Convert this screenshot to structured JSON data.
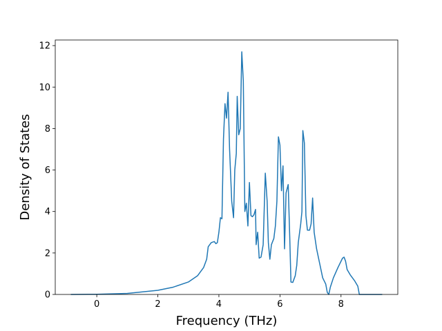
{
  "chart_data": {
    "type": "line",
    "xlabel": "Frequency (THz)",
    "ylabel": "Density of States",
    "color": "#1f77b4",
    "x": [
      -0.85,
      0,
      1,
      2,
      2.5,
      3,
      3.3,
      3.5,
      3.6,
      3.65,
      3.75,
      3.85,
      3.9,
      3.95,
      4.0,
      4.05,
      4.1,
      4.15,
      4.2,
      4.25,
      4.3,
      4.35,
      4.42,
      4.48,
      4.52,
      4.57,
      4.6,
      4.65,
      4.7,
      4.75,
      4.8,
      4.85,
      4.9,
      4.95,
      5.0,
      5.05,
      5.1,
      5.15,
      5.2,
      5.22,
      5.27,
      5.32,
      5.38,
      5.45,
      5.52,
      5.58,
      5.62,
      5.67,
      5.72,
      5.8,
      5.85,
      5.9,
      5.95,
      6.0,
      6.05,
      6.1,
      6.15,
      6.2,
      6.27,
      6.32,
      6.36,
      6.42,
      6.5,
      6.55,
      6.6,
      6.68,
      6.72,
      6.75,
      6.8,
      6.85,
      6.9,
      6.97,
      7.02,
      7.07,
      7.12,
      7.2,
      7.3,
      7.4,
      7.5,
      7.55,
      7.6,
      7.65,
      7.75,
      7.9,
      8.05,
      8.1,
      8.15,
      8.2,
      8.3,
      8.45,
      8.55,
      8.6,
      9.35
    ],
    "values": [
      0,
      0.01,
      0.05,
      0.2,
      0.35,
      0.6,
      0.9,
      1.3,
      1.7,
      2.3,
      2.5,
      2.55,
      2.45,
      2.5,
      3.0,
      3.7,
      3.65,
      7.5,
      9.2,
      8.5,
      9.75,
      7.0,
      4.5,
      3.7,
      6.0,
      6.8,
      9.55,
      7.7,
      8.0,
      11.7,
      10.3,
      4.0,
      4.4,
      3.3,
      5.4,
      3.8,
      3.75,
      3.85,
      4.1,
      2.4,
      3.0,
      1.75,
      1.8,
      2.4,
      5.85,
      4.5,
      2.5,
      1.7,
      2.4,
      2.7,
      3.3,
      4.5,
      7.6,
      7.2,
      5.0,
      6.2,
      2.2,
      4.9,
      5.3,
      2.8,
      0.6,
      0.58,
      0.9,
      1.4,
      2.5,
      3.4,
      4.0,
      7.9,
      7.3,
      3.8,
      3.1,
      3.1,
      3.4,
      4.65,
      3.0,
      2.2,
      1.5,
      0.8,
      0.5,
      0.1,
      0.0,
      0.35,
      0.8,
      1.3,
      1.75,
      1.8,
      1.6,
      1.2,
      0.95,
      0.65,
      0.4,
      0.0,
      0.0
    ],
    "xlim": [
      -1.36,
      9.86
    ],
    "xticks": [
      0,
      2,
      4,
      6,
      8
    ],
    "ylim": [
      0,
      12.27
    ],
    "yticks": [
      0,
      2,
      4,
      6,
      8,
      10,
      12
    ]
  }
}
